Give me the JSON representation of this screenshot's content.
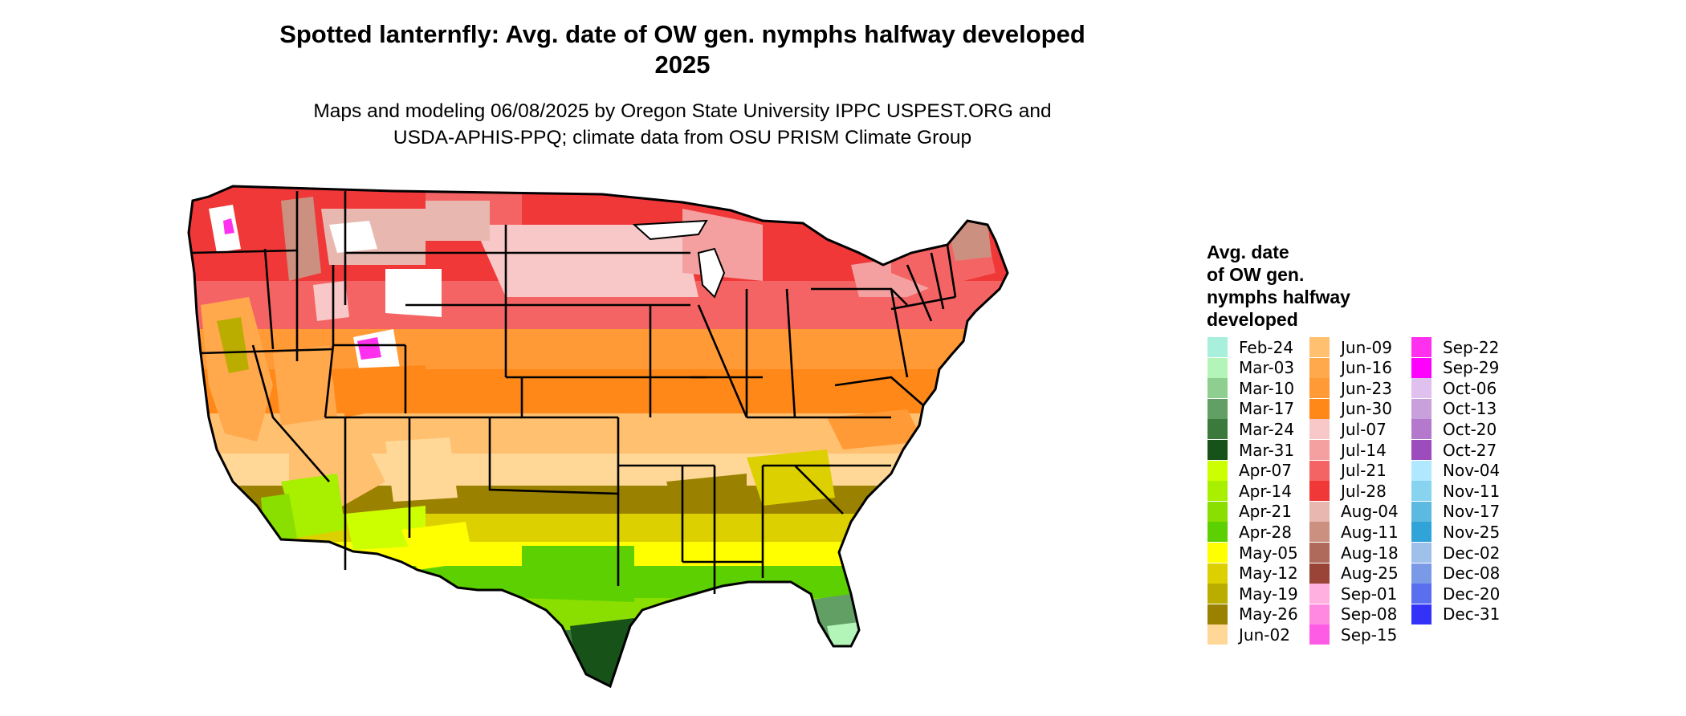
{
  "title_line1": "Spotted lanternfly: Avg. date of OW gen. nymphs halfway developed",
  "title_line2": "2025",
  "subtitle_line1": "Maps and modeling 06/08/2025 by Oregon State University IPPC USPEST.ORG and",
  "subtitle_line2": "USDA-APHIS-PPQ; climate data from OSU PRISM Climate Group",
  "legend_title": [
    "Avg. date",
    "of OW gen.",
    "nymphs halfway",
    "developed"
  ],
  "legend_columns": [
    [
      {
        "label": "Feb-24",
        "color": "#a8f0dc"
      },
      {
        "label": "Mar-03",
        "color": "#b3f5b8"
      },
      {
        "label": "Mar-10",
        "color": "#8ecf8f"
      },
      {
        "label": "Mar-17",
        "color": "#629f65"
      },
      {
        "label": "Mar-24",
        "color": "#3b7a3c"
      },
      {
        "label": "Mar-31",
        "color": "#175219"
      },
      {
        "label": "Apr-07",
        "color": "#ccff00"
      },
      {
        "label": "Apr-14",
        "color": "#a8ef00"
      },
      {
        "label": "Apr-21",
        "color": "#8ade00"
      },
      {
        "label": "Apr-28",
        "color": "#5cd000"
      },
      {
        "label": "May-05",
        "color": "#ffff00"
      },
      {
        "label": "May-12",
        "color": "#dcd000"
      },
      {
        "label": "May-19",
        "color": "#bbac00"
      },
      {
        "label": "May-26",
        "color": "#9a8200"
      },
      {
        "label": "Jun-02",
        "color": "#ffd898"
      }
    ],
    [
      {
        "label": "Jun-09",
        "color": "#ffc070"
      },
      {
        "label": "Jun-16",
        "color": "#ffa84c"
      },
      {
        "label": "Jun-23",
        "color": "#ff9a36"
      },
      {
        "label": "Jun-30",
        "color": "#ff8818"
      },
      {
        "label": "Jul-07",
        "color": "#f8c8c8"
      },
      {
        "label": "Jul-14",
        "color": "#f4a0a0"
      },
      {
        "label": "Jul-21",
        "color": "#f46464"
      },
      {
        "label": "Jul-28",
        "color": "#f03838"
      },
      {
        "label": "Aug-04",
        "color": "#e8b8b0"
      },
      {
        "label": "Aug-11",
        "color": "#cc9080"
      },
      {
        "label": "Aug-18",
        "color": "#b06a5c"
      },
      {
        "label": "Aug-25",
        "color": "#9a4438"
      },
      {
        "label": "Sep-01",
        "color": "#ffb0e0"
      },
      {
        "label": "Sep-08",
        "color": "#ff88e0"
      },
      {
        "label": "Sep-15",
        "color": "#ff5ce6"
      }
    ],
    [
      {
        "label": "Sep-22",
        "color": "#ff30ee"
      },
      {
        "label": "Sep-29",
        "color": "#ff00ff"
      },
      {
        "label": "Oct-06",
        "color": "#e0c0ee"
      },
      {
        "label": "Oct-13",
        "color": "#c8a0dc"
      },
      {
        "label": "Oct-20",
        "color": "#b478cc"
      },
      {
        "label": "Oct-27",
        "color": "#9c4cbc"
      },
      {
        "label": "Nov-04",
        "color": "#b0e8ff"
      },
      {
        "label": "Nov-11",
        "color": "#88d4f0"
      },
      {
        "label": "Nov-17",
        "color": "#5cbae0"
      },
      {
        "label": "Nov-25",
        "color": "#30a4d8"
      },
      {
        "label": "Dec-02",
        "color": "#a0c0ec"
      },
      {
        "label": "Dec-08",
        "color": "#7a9ae8"
      },
      {
        "label": "Dec-20",
        "color": "#5a6ef0"
      },
      {
        "label": "Dec-31",
        "color": "#3232f8"
      }
    ]
  ]
}
